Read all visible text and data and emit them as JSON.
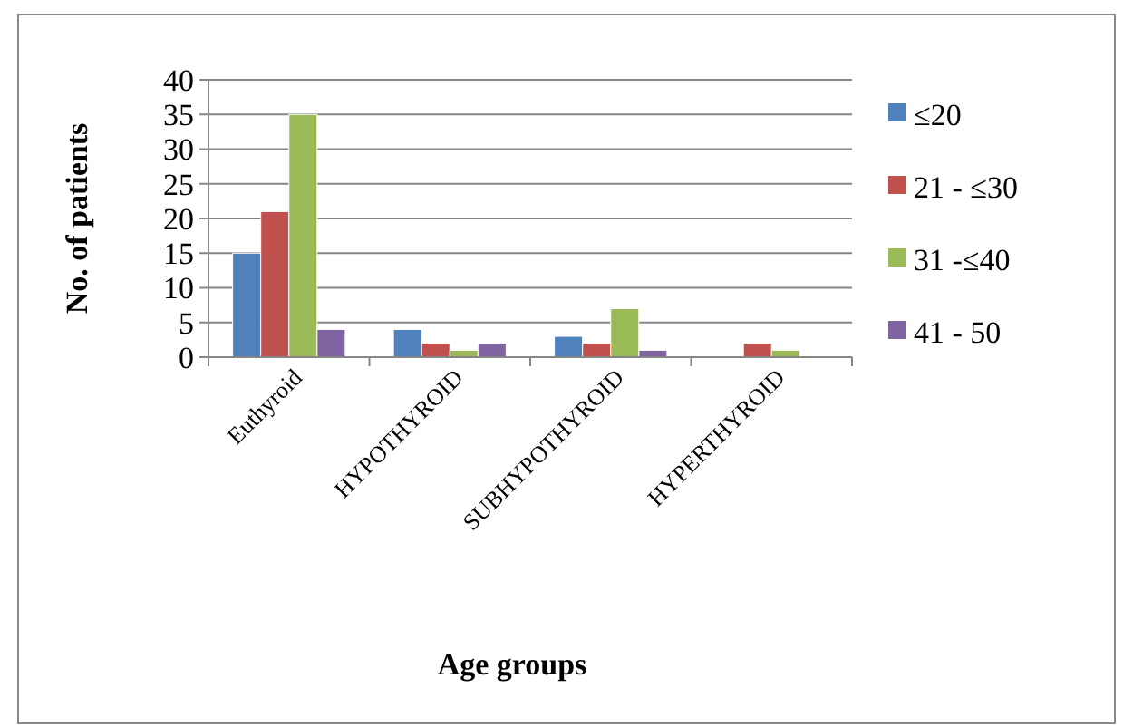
{
  "chart_data": {
    "type": "bar",
    "xlabel": "Age groups",
    "ylabel": "No. of patients",
    "categories": [
      "Euthyroid",
      "HYPOTHYROID",
      "SUBHYPOTHYROID",
      "HYPERTHYROID"
    ],
    "series": [
      {
        "name": "≤20",
        "color": "#4f81bd",
        "values": [
          15,
          4,
          3,
          0
        ]
      },
      {
        "name": "21 - ≤30",
        "color": "#c0504d",
        "values": [
          21,
          2,
          2,
          2
        ]
      },
      {
        "name": "31 -≤40",
        "color": "#9bbb59",
        "values": [
          35,
          1,
          7,
          1
        ]
      },
      {
        "name": "41 - 50",
        "color": "#8064a2",
        "values": [
          4,
          2,
          1,
          0
        ]
      }
    ],
    "ylim": [
      0,
      40
    ],
    "yticks": [
      0,
      5,
      10,
      15,
      20,
      25,
      30,
      35,
      40
    ],
    "grid": "y",
    "legend": "right"
  }
}
